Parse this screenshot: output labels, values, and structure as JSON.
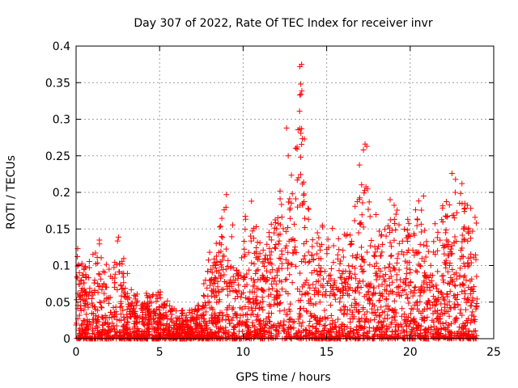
{
  "chart_data": {
    "type": "scatter",
    "title": "Day 307 of 2022, Rate Of TEC Index for receiver invr",
    "xlabel": "GPS time / hours",
    "ylabel": "ROTI / TECUs",
    "xlim": [
      0,
      25
    ],
    "ylim": [
      0,
      0.4
    ],
    "xticks": [
      "0",
      "5",
      "10",
      "15",
      "20",
      "25"
    ],
    "yticks": [
      "0",
      "0.05",
      "0.1",
      "0.15",
      "0.2",
      "0.25",
      "0.3",
      "0.35",
      "0.4"
    ],
    "grid": true,
    "marker": "plus",
    "color": "#ff0000",
    "envelope_hours": [
      0,
      0.5,
      1,
      1.5,
      2,
      2.5,
      3,
      3.5,
      4,
      4.5,
      5,
      5.5,
      6,
      6.5,
      7,
      7.5,
      8,
      8.5,
      9,
      9.5,
      10,
      10.5,
      11,
      11.5,
      12,
      12.5,
      13,
      13.5,
      14,
      14.5,
      15,
      15.5,
      16,
      16.5,
      17,
      17.5,
      18,
      18.5,
      19,
      19.5,
      20,
      20.5,
      21,
      21.5,
      22,
      22.5,
      23,
      23.5,
      24
    ],
    "envelope_roti": [
      0.13,
      0.1,
      0.12,
      0.14,
      0.11,
      0.155,
      0.1,
      0.06,
      0.07,
      0.065,
      0.065,
      0.06,
      0.04,
      0.04,
      0.045,
      0.06,
      0.13,
      0.16,
      0.195,
      0.15,
      0.185,
      0.16,
      0.15,
      0.14,
      0.19,
      0.28,
      0.22,
      0.375,
      0.15,
      0.15,
      0.18,
      0.14,
      0.17,
      0.14,
      0.265,
      0.2,
      0.17,
      0.17,
      0.19,
      0.16,
      0.17,
      0.19,
      0.16,
      0.17,
      0.195,
      0.225,
      0.21,
      0.19,
      0.185
    ],
    "notable_points": [
      {
        "x": 9.0,
        "y": 0.197
      },
      {
        "x": 10.5,
        "y": 0.188
      },
      {
        "x": 12.6,
        "y": 0.288
      },
      {
        "x": 12.7,
        "y": 0.25
      },
      {
        "x": 13.4,
        "y": 0.372
      },
      {
        "x": 13.5,
        "y": 0.375
      },
      {
        "x": 13.45,
        "y": 0.348
      },
      {
        "x": 13.4,
        "y": 0.333
      },
      {
        "x": 13.5,
        "y": 0.287
      },
      {
        "x": 13.45,
        "y": 0.281
      },
      {
        "x": 17.3,
        "y": 0.266
      },
      {
        "x": 17.4,
        "y": 0.263
      },
      {
        "x": 17.2,
        "y": 0.258
      },
      {
        "x": 18.8,
        "y": 0.19
      },
      {
        "x": 22.5,
        "y": 0.226
      },
      {
        "x": 23.1,
        "y": 0.212
      },
      {
        "x": 22.7,
        "y": 0.2
      },
      {
        "x": 20.8,
        "y": 0.195
      }
    ]
  }
}
